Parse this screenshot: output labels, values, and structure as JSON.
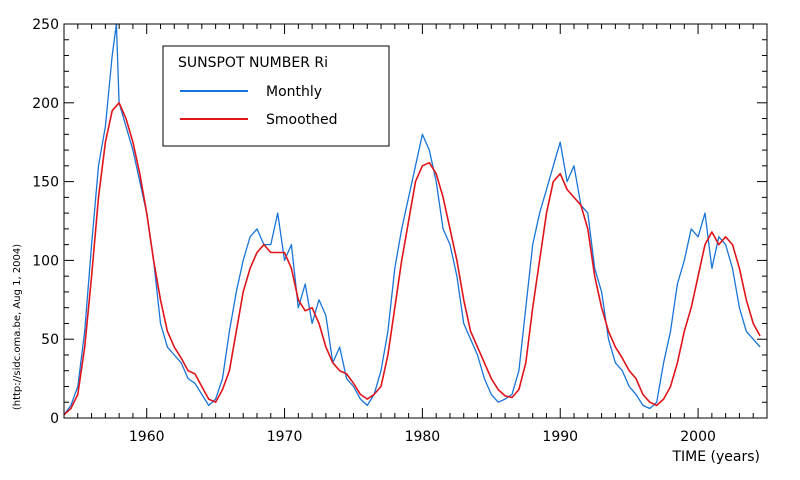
{
  "chart_data": {
    "type": "line",
    "title": "",
    "xlabel": "TIME (years)",
    "ylabel": "",
    "credit": "(http://sidc.oma.be, Aug  1, 2004)",
    "xlim": [
      1954,
      2005
    ],
    "ylim": [
      0,
      250
    ],
    "x_ticks": [
      1960,
      1970,
      1980,
      1990,
      2000
    ],
    "y_ticks": [
      0,
      50,
      100,
      150,
      200,
      250
    ],
    "grid": false,
    "legend": {
      "title": "SUNSPOT NUMBER Ri",
      "placement": "top-left"
    },
    "series": [
      {
        "name": "Monthly",
        "color": "#1874d8",
        "x": [
          1954.0,
          1954.5,
          1955.0,
          1955.5,
          1956.0,
          1956.5,
          1957.0,
          1957.5,
          1957.8,
          1958.0,
          1958.5,
          1959.0,
          1959.5,
          1960.0,
          1960.5,
          1961.0,
          1961.5,
          1962.0,
          1962.5,
          1963.0,
          1963.5,
          1964.0,
          1964.5,
          1965.0,
          1965.5,
          1966.0,
          1966.5,
          1967.0,
          1967.5,
          1968.0,
          1968.5,
          1969.0,
          1969.5,
          1970.0,
          1970.5,
          1971.0,
          1971.5,
          1972.0,
          1972.5,
          1973.0,
          1973.5,
          1974.0,
          1974.5,
          1975.0,
          1975.5,
          1976.0,
          1976.5,
          1977.0,
          1977.5,
          1978.0,
          1978.5,
          1979.0,
          1979.5,
          1980.0,
          1980.5,
          1981.0,
          1981.5,
          1982.0,
          1982.5,
          1983.0,
          1983.5,
          1984.0,
          1984.5,
          1985.0,
          1985.5,
          1986.0,
          1986.5,
          1987.0,
          1987.5,
          1988.0,
          1988.5,
          1989.0,
          1989.5,
          1990.0,
          1990.5,
          1991.0,
          1991.5,
          1992.0,
          1992.5,
          1993.0,
          1993.5,
          1994.0,
          1994.5,
          1995.0,
          1995.5,
          1996.0,
          1996.5,
          1997.0,
          1997.5,
          1998.0,
          1998.5,
          1999.0,
          1999.5,
          2000.0,
          2000.5,
          2001.0,
          2001.5,
          2002.0,
          2002.5,
          2003.0,
          2003.5,
          2004.0,
          2004.5
        ],
        "y": [
          2,
          8,
          20,
          55,
          110,
          160,
          185,
          230,
          250,
          200,
          185,
          170,
          150,
          130,
          100,
          60,
          45,
          40,
          35,
          25,
          22,
          15,
          8,
          12,
          25,
          55,
          80,
          100,
          115,
          120,
          110,
          110,
          130,
          100,
          110,
          70,
          85,
          60,
          75,
          65,
          35,
          45,
          25,
          20,
          12,
          8,
          15,
          30,
          55,
          95,
          120,
          140,
          160,
          180,
          170,
          150,
          120,
          110,
          90,
          60,
          50,
          40,
          25,
          15,
          10,
          12,
          15,
          30,
          70,
          110,
          130,
          145,
          160,
          175,
          150,
          160,
          135,
          130,
          95,
          80,
          50,
          35,
          30,
          20,
          15,
          8,
          6,
          10,
          35,
          55,
          85,
          100,
          120,
          115,
          130,
          95,
          115,
          110,
          95,
          70,
          55,
          50,
          45
        ]
      },
      {
        "name": "Smoothed",
        "color": "#e0141a",
        "x": [
          1954.0,
          1954.5,
          1955.0,
          1955.5,
          1956.0,
          1956.5,
          1957.0,
          1957.5,
          1958.0,
          1958.5,
          1959.0,
          1959.5,
          1960.0,
          1960.5,
          1961.0,
          1961.5,
          1962.0,
          1962.5,
          1963.0,
          1963.5,
          1964.0,
          1964.5,
          1965.0,
          1965.5,
          1966.0,
          1966.5,
          1967.0,
          1967.5,
          1968.0,
          1968.5,
          1969.0,
          1969.5,
          1970.0,
          1970.5,
          1971.0,
          1971.5,
          1972.0,
          1972.5,
          1973.0,
          1973.5,
          1974.0,
          1974.5,
          1975.0,
          1975.5,
          1976.0,
          1976.5,
          1977.0,
          1977.5,
          1978.0,
          1978.5,
          1979.0,
          1979.5,
          1980.0,
          1980.5,
          1981.0,
          1981.5,
          1982.0,
          1982.5,
          1983.0,
          1983.5,
          1984.0,
          1984.5,
          1985.0,
          1985.5,
          1986.0,
          1986.5,
          1987.0,
          1987.5,
          1988.0,
          1988.5,
          1989.0,
          1989.5,
          1990.0,
          1990.5,
          1991.0,
          1991.5,
          1992.0,
          1992.5,
          1993.0,
          1993.5,
          1994.0,
          1994.5,
          1995.0,
          1995.5,
          1996.0,
          1996.5,
          1997.0,
          1997.5,
          1998.0,
          1998.5,
          1999.0,
          1999.5,
          2000.0,
          2000.5,
          2001.0,
          2001.5,
          2002.0,
          2002.5,
          2003.0,
          2003.5,
          2004.0,
          2004.5
        ],
        "y": [
          2,
          6,
          15,
          45,
          90,
          140,
          175,
          195,
          200,
          190,
          175,
          155,
          130,
          100,
          75,
          55,
          45,
          38,
          30,
          28,
          20,
          12,
          10,
          18,
          30,
          55,
          80,
          95,
          105,
          110,
          105,
          105,
          105,
          95,
          75,
          68,
          70,
          60,
          45,
          35,
          30,
          28,
          22,
          15,
          12,
          15,
          20,
          40,
          70,
          100,
          125,
          150,
          160,
          162,
          155,
          140,
          120,
          100,
          75,
          55,
          45,
          35,
          25,
          18,
          14,
          13,
          18,
          35,
          70,
          100,
          130,
          150,
          155,
          145,
          140,
          135,
          120,
          90,
          70,
          55,
          45,
          38,
          30,
          25,
          15,
          10,
          8,
          12,
          20,
          35,
          55,
          70,
          90,
          110,
          118,
          110,
          115,
          110,
          95,
          75,
          60,
          52
        ]
      }
    ]
  }
}
